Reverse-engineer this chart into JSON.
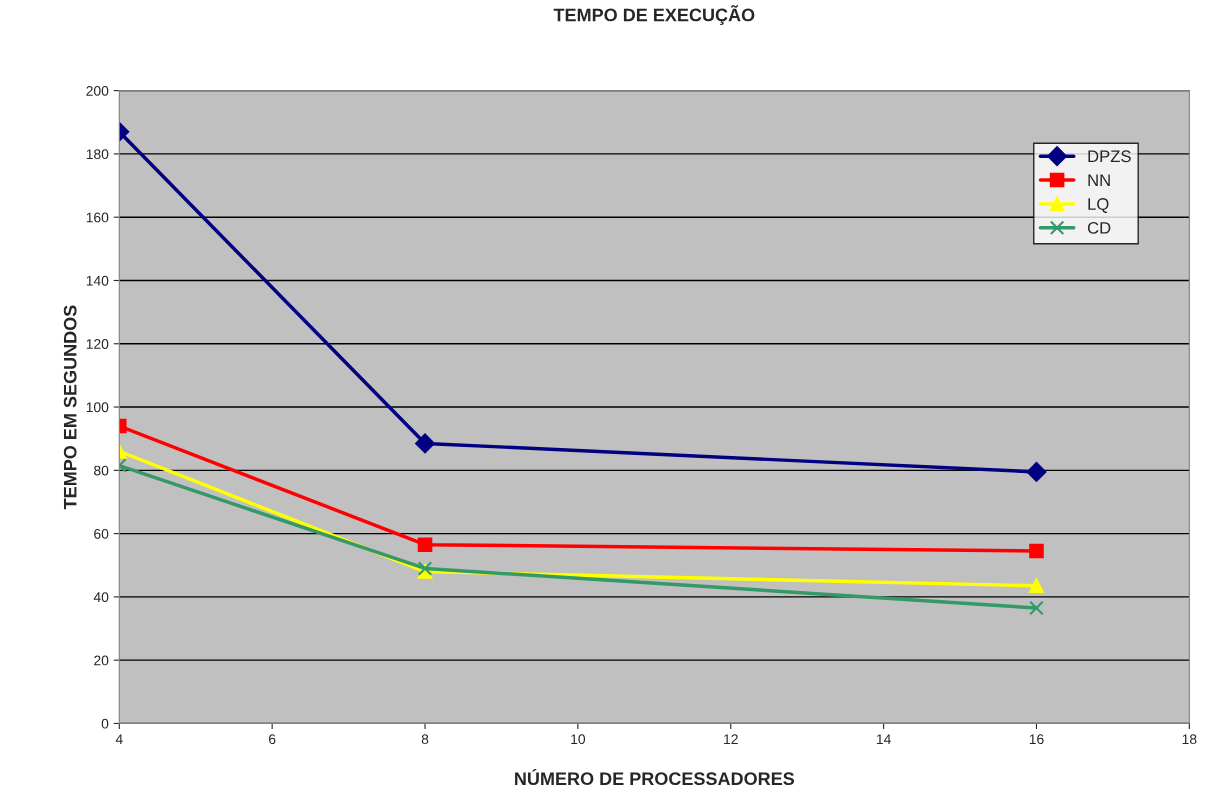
{
  "chart_data": {
    "type": "line",
    "title": "TEMPO DE EXECUÇÃO",
    "xlabel": "NÚMERO DE PROCESSADORES",
    "ylabel": "TEMPO EM SEGUNDOS",
    "x": [
      4,
      8,
      16
    ],
    "series": [
      {
        "name": "DPZS",
        "color": "#000080",
        "marker": "diamond",
        "values": [
          187,
          88.5,
          79.5
        ]
      },
      {
        "name": "NN",
        "color": "#ff0000",
        "marker": "square",
        "values": [
          94,
          56.5,
          54.5
        ]
      },
      {
        "name": "LQ",
        "color": "#ffff00",
        "marker": "triangle",
        "values": [
          86,
          48,
          43.5
        ]
      },
      {
        "name": "CD",
        "color": "#339966",
        "marker": "cross",
        "values": [
          81.5,
          49,
          36.5
        ]
      }
    ],
    "xlim": [
      4,
      18
    ],
    "xticks": [
      4,
      6,
      8,
      10,
      12,
      14,
      16,
      18
    ],
    "ylim": [
      0,
      200
    ],
    "yticks": [
      0,
      20,
      40,
      60,
      80,
      100,
      120,
      140,
      160,
      180,
      200
    ],
    "grid": "y",
    "legend": "top right"
  }
}
